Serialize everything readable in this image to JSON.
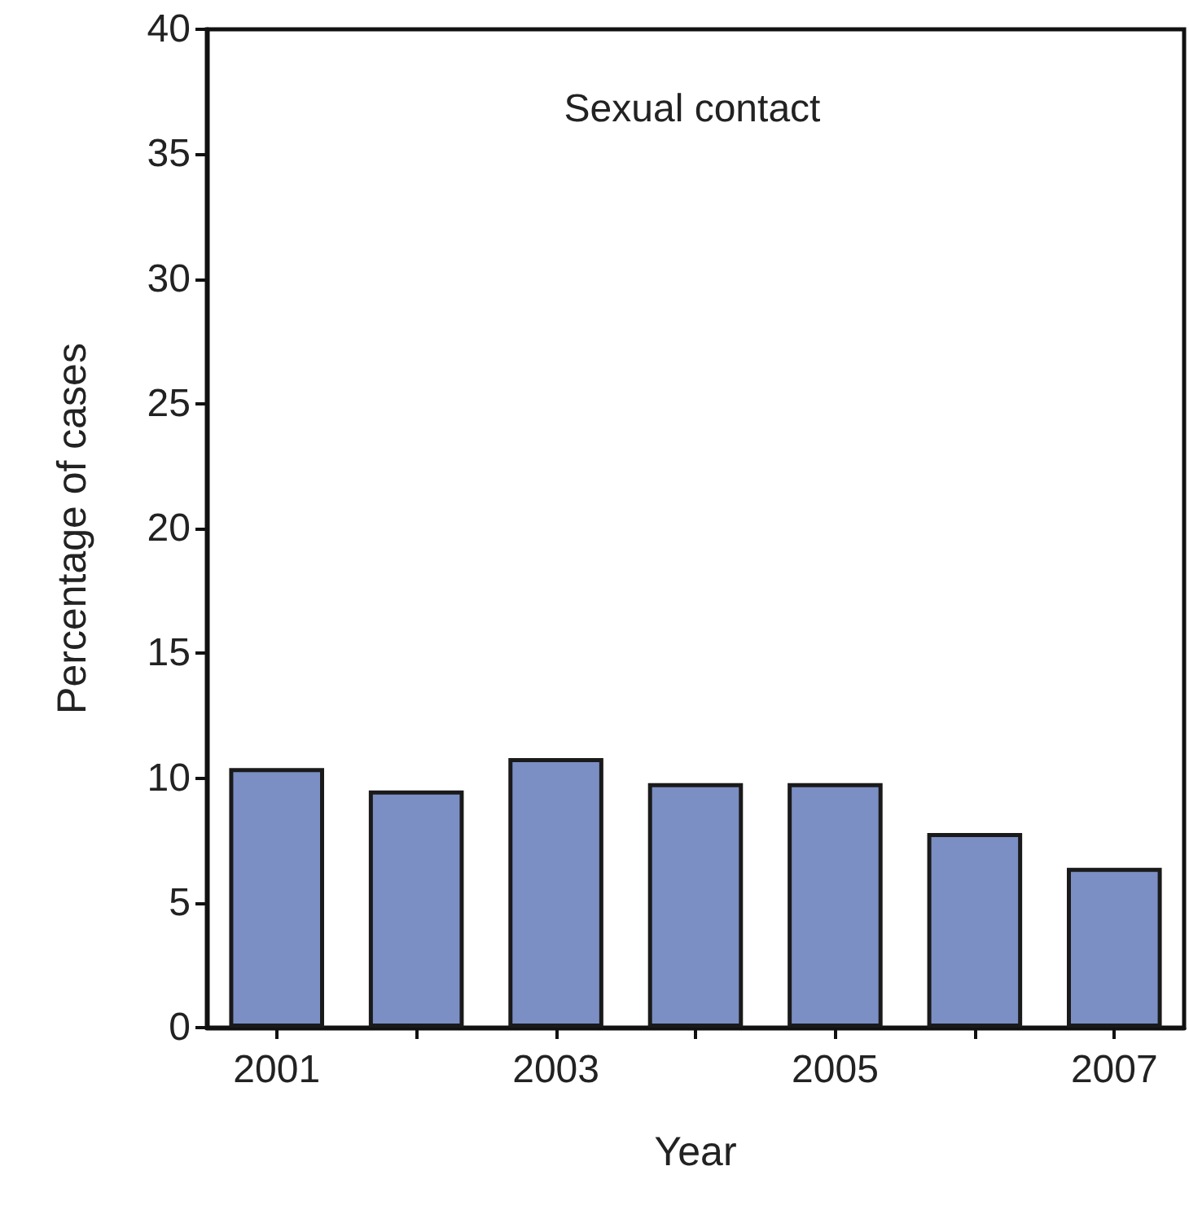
{
  "chart_data": {
    "type": "bar",
    "title": "Sexual contact",
    "xlabel": "Year",
    "ylabel": "Percentage of cases",
    "categories": [
      "2001",
      null,
      "2003",
      null,
      "2005",
      null,
      "2007"
    ],
    "values": [
      10.4,
      9.5,
      10.8,
      9.8,
      9.8,
      7.8,
      6.4
    ],
    "color": "#7b8fc4",
    "ylim": [
      0,
      40
    ],
    "yticks": [
      0,
      5,
      10,
      15,
      20,
      25,
      30,
      35,
      40
    ],
    "grid": false
  }
}
